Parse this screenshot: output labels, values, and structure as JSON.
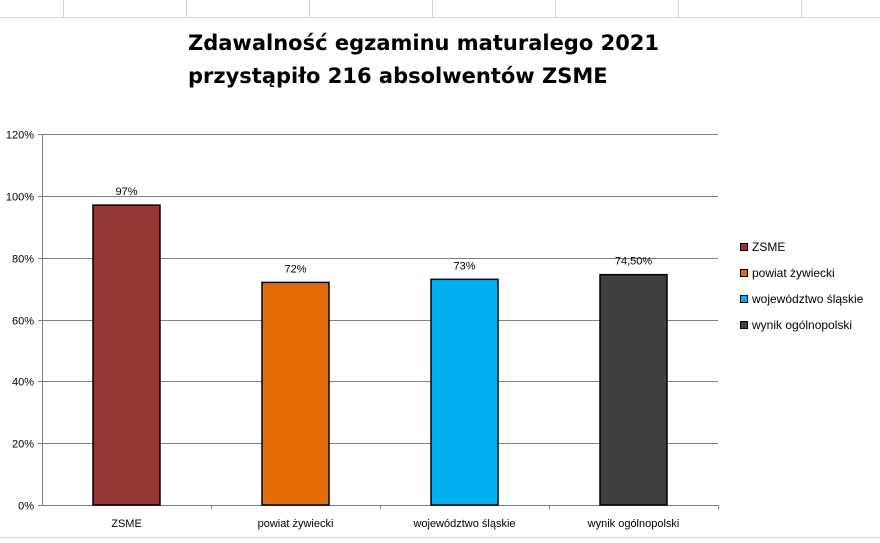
{
  "chart_data": {
    "type": "bar",
    "title": "Zdawalność egzaminu maturalego 2021",
    "subtitle": "przystąpiło 216 absolwentów ZSME",
    "xlabel": "",
    "ylabel": "",
    "ylim": [
      0,
      1.2
    ],
    "yticks": [
      0,
      0.2,
      0.4,
      0.6,
      0.8,
      1.0,
      1.2
    ],
    "ytick_labels": [
      "0%",
      "20%",
      "40%",
      "60%",
      "80%",
      "100%",
      "120%"
    ],
    "grid": true,
    "legend_position": "right",
    "categories": [
      "ZSME",
      "powiat żywiecki",
      "województwo śląskie",
      "wynik ogólnopolski"
    ],
    "values": [
      0.97,
      0.72,
      0.73,
      0.745
    ],
    "value_labels": [
      "97%",
      "72%",
      "73%",
      "74,50%"
    ],
    "colors": [
      "#943634",
      "#E36C09",
      "#00B0F0",
      "#404040"
    ]
  }
}
